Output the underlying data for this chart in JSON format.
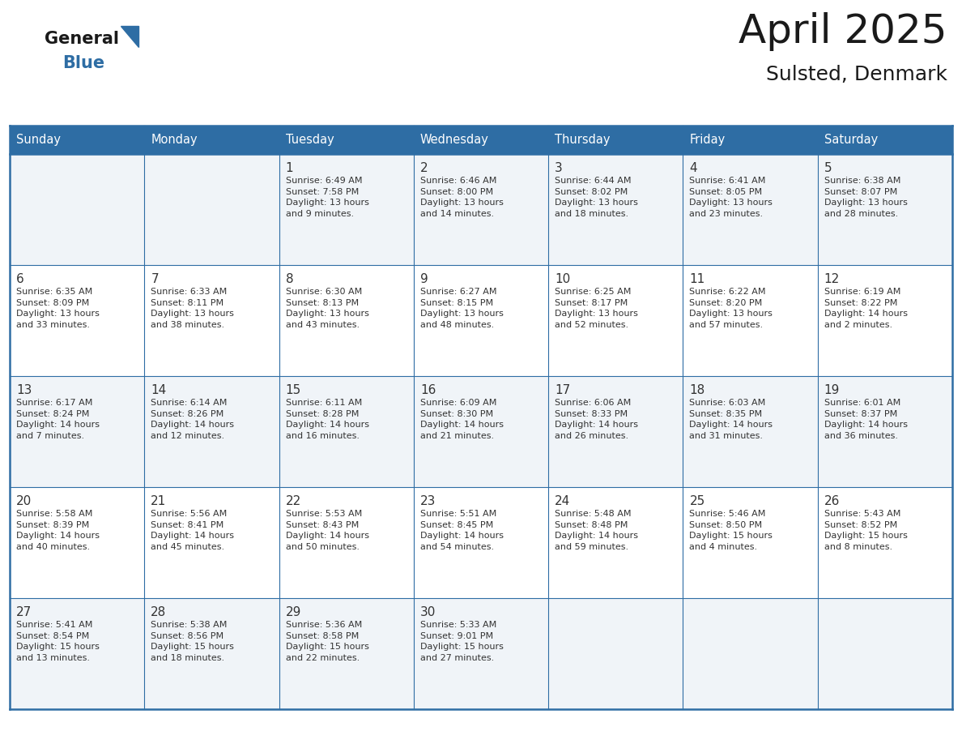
{
  "title": "April 2025",
  "subtitle": "Sulsted, Denmark",
  "header_bg": "#2E6DA4",
  "header_text_color": "#FFFFFF",
  "cell_bg_odd": "#F0F4F8",
  "cell_bg_even": "#FFFFFF",
  "grid_line_color": "#2E6DA4",
  "day_names": [
    "Sunday",
    "Monday",
    "Tuesday",
    "Wednesday",
    "Thursday",
    "Friday",
    "Saturday"
  ],
  "title_color": "#1a1a1a",
  "subtitle_color": "#1a1a1a",
  "date_color": "#333333",
  "info_color": "#333333",
  "logo_general_color": "#1a1a1a",
  "logo_blue_color": "#2E6DA4",
  "weeks": [
    [
      {
        "day": "",
        "info": ""
      },
      {
        "day": "",
        "info": ""
      },
      {
        "day": "1",
        "info": "Sunrise: 6:49 AM\nSunset: 7:58 PM\nDaylight: 13 hours\nand 9 minutes."
      },
      {
        "day": "2",
        "info": "Sunrise: 6:46 AM\nSunset: 8:00 PM\nDaylight: 13 hours\nand 14 minutes."
      },
      {
        "day": "3",
        "info": "Sunrise: 6:44 AM\nSunset: 8:02 PM\nDaylight: 13 hours\nand 18 minutes."
      },
      {
        "day": "4",
        "info": "Sunrise: 6:41 AM\nSunset: 8:05 PM\nDaylight: 13 hours\nand 23 minutes."
      },
      {
        "day": "5",
        "info": "Sunrise: 6:38 AM\nSunset: 8:07 PM\nDaylight: 13 hours\nand 28 minutes."
      }
    ],
    [
      {
        "day": "6",
        "info": "Sunrise: 6:35 AM\nSunset: 8:09 PM\nDaylight: 13 hours\nand 33 minutes."
      },
      {
        "day": "7",
        "info": "Sunrise: 6:33 AM\nSunset: 8:11 PM\nDaylight: 13 hours\nand 38 minutes."
      },
      {
        "day": "8",
        "info": "Sunrise: 6:30 AM\nSunset: 8:13 PM\nDaylight: 13 hours\nand 43 minutes."
      },
      {
        "day": "9",
        "info": "Sunrise: 6:27 AM\nSunset: 8:15 PM\nDaylight: 13 hours\nand 48 minutes."
      },
      {
        "day": "10",
        "info": "Sunrise: 6:25 AM\nSunset: 8:17 PM\nDaylight: 13 hours\nand 52 minutes."
      },
      {
        "day": "11",
        "info": "Sunrise: 6:22 AM\nSunset: 8:20 PM\nDaylight: 13 hours\nand 57 minutes."
      },
      {
        "day": "12",
        "info": "Sunrise: 6:19 AM\nSunset: 8:22 PM\nDaylight: 14 hours\nand 2 minutes."
      }
    ],
    [
      {
        "day": "13",
        "info": "Sunrise: 6:17 AM\nSunset: 8:24 PM\nDaylight: 14 hours\nand 7 minutes."
      },
      {
        "day": "14",
        "info": "Sunrise: 6:14 AM\nSunset: 8:26 PM\nDaylight: 14 hours\nand 12 minutes."
      },
      {
        "day": "15",
        "info": "Sunrise: 6:11 AM\nSunset: 8:28 PM\nDaylight: 14 hours\nand 16 minutes."
      },
      {
        "day": "16",
        "info": "Sunrise: 6:09 AM\nSunset: 8:30 PM\nDaylight: 14 hours\nand 21 minutes."
      },
      {
        "day": "17",
        "info": "Sunrise: 6:06 AM\nSunset: 8:33 PM\nDaylight: 14 hours\nand 26 minutes."
      },
      {
        "day": "18",
        "info": "Sunrise: 6:03 AM\nSunset: 8:35 PM\nDaylight: 14 hours\nand 31 minutes."
      },
      {
        "day": "19",
        "info": "Sunrise: 6:01 AM\nSunset: 8:37 PM\nDaylight: 14 hours\nand 36 minutes."
      }
    ],
    [
      {
        "day": "20",
        "info": "Sunrise: 5:58 AM\nSunset: 8:39 PM\nDaylight: 14 hours\nand 40 minutes."
      },
      {
        "day": "21",
        "info": "Sunrise: 5:56 AM\nSunset: 8:41 PM\nDaylight: 14 hours\nand 45 minutes."
      },
      {
        "day": "22",
        "info": "Sunrise: 5:53 AM\nSunset: 8:43 PM\nDaylight: 14 hours\nand 50 minutes."
      },
      {
        "day": "23",
        "info": "Sunrise: 5:51 AM\nSunset: 8:45 PM\nDaylight: 14 hours\nand 54 minutes."
      },
      {
        "day": "24",
        "info": "Sunrise: 5:48 AM\nSunset: 8:48 PM\nDaylight: 14 hours\nand 59 minutes."
      },
      {
        "day": "25",
        "info": "Sunrise: 5:46 AM\nSunset: 8:50 PM\nDaylight: 15 hours\nand 4 minutes."
      },
      {
        "day": "26",
        "info": "Sunrise: 5:43 AM\nSunset: 8:52 PM\nDaylight: 15 hours\nand 8 minutes."
      }
    ],
    [
      {
        "day": "27",
        "info": "Sunrise: 5:41 AM\nSunset: 8:54 PM\nDaylight: 15 hours\nand 13 minutes."
      },
      {
        "day": "28",
        "info": "Sunrise: 5:38 AM\nSunset: 8:56 PM\nDaylight: 15 hours\nand 18 minutes."
      },
      {
        "day": "29",
        "info": "Sunrise: 5:36 AM\nSunset: 8:58 PM\nDaylight: 15 hours\nand 22 minutes."
      },
      {
        "day": "30",
        "info": "Sunrise: 5:33 AM\nSunset: 9:01 PM\nDaylight: 15 hours\nand 27 minutes."
      },
      {
        "day": "",
        "info": ""
      },
      {
        "day": "",
        "info": ""
      },
      {
        "day": "",
        "info": ""
      }
    ]
  ]
}
